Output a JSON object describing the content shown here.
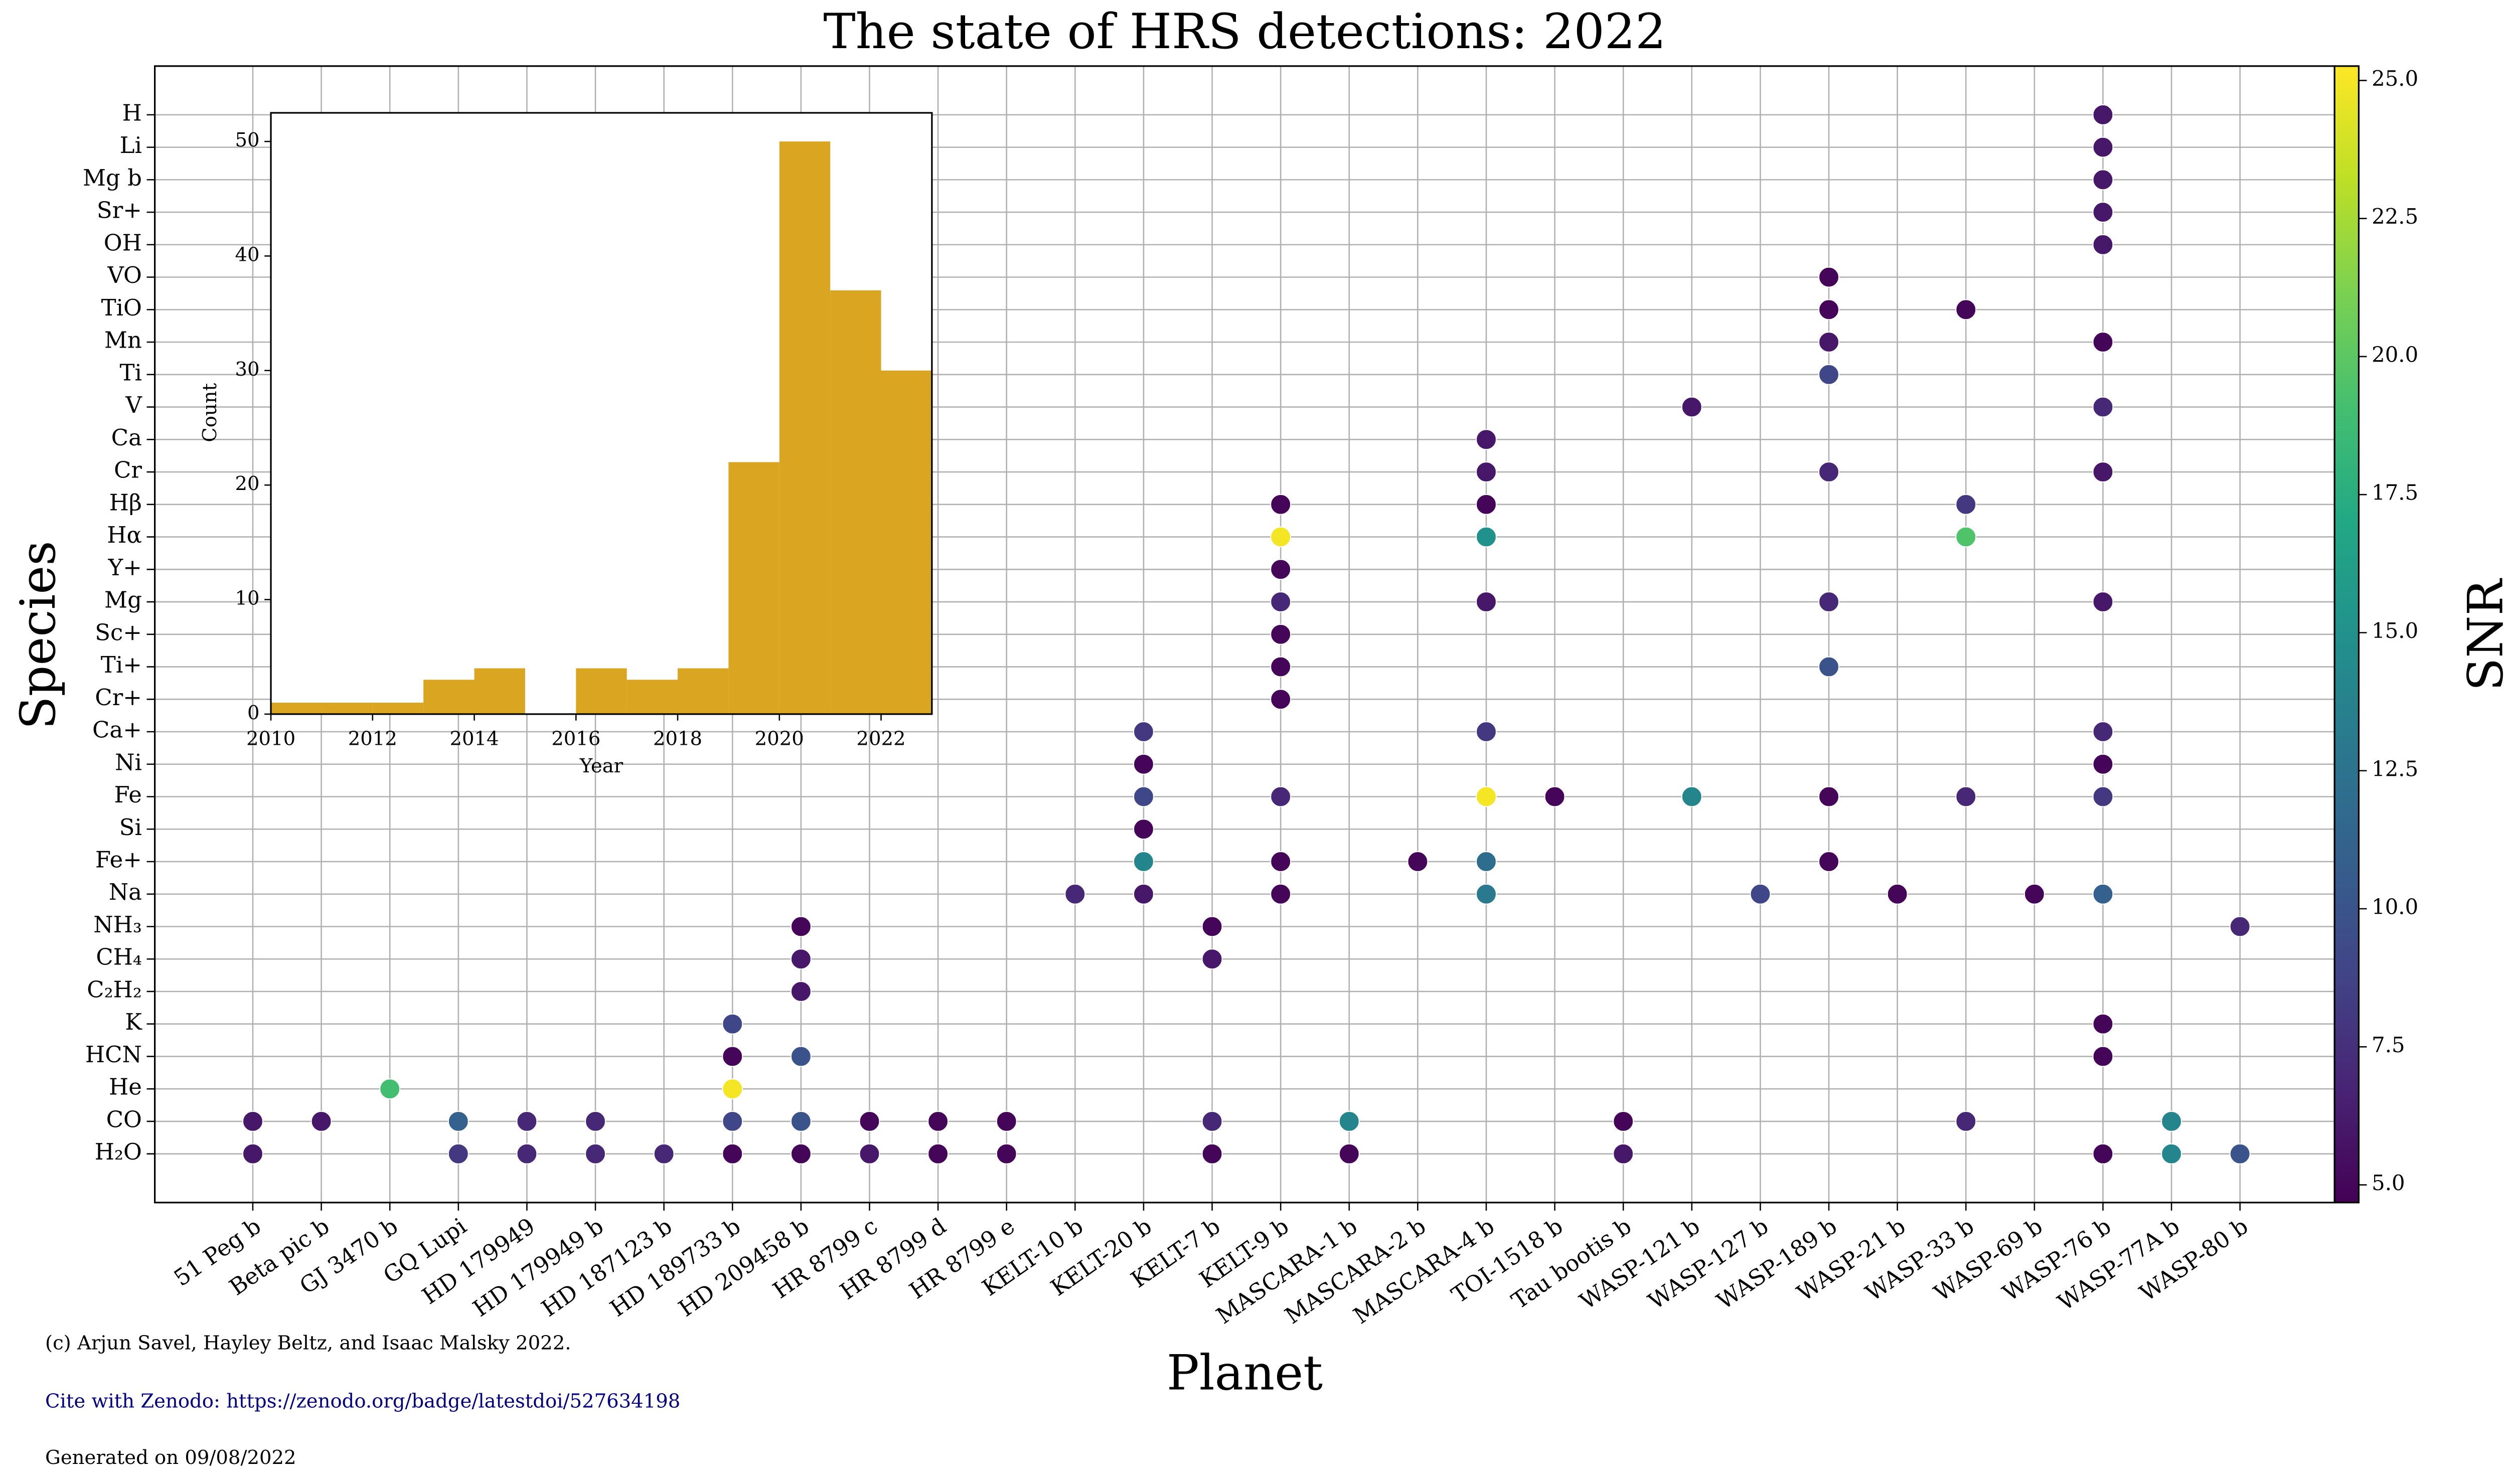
{
  "chart_data": [
    {
      "type": "scatter",
      "title": "The state of HRS detections: 2022",
      "x_label": "Planet",
      "y_label": "Species",
      "colorbar_label": "SNR",
      "categories": [
        "51 Peg b",
        "Beta pic b",
        "GJ 3470 b",
        "GQ Lupi",
        "HD 179949",
        "HD 179949 b",
        "HD 187123 b",
        "HD 189733 b",
        "HD 209458 b",
        "HR 8799 c",
        "HR 8799 d",
        "HR 8799 e",
        "KELT-10 b",
        "KELT-20 b",
        "KELT-7 b",
        "KELT-9 b",
        "MASCARA-1 b",
        "MASCARA-2 b",
        "MASCARA-4 b",
        "TOI-1518 b",
        "Tau bootis b",
        "WASP-121 b",
        "WASP-127 b",
        "WASP-189 b",
        "WASP-21 b",
        "WASP-33 b",
        "WASP-69 b",
        "WASP-76 b",
        "WASP-77A b",
        "WASP-80 b"
      ],
      "y_categories": [
        "H₂O",
        "CO",
        "He",
        "HCN",
        "K",
        "C₂H₂",
        "CH₄",
        "NH₃",
        "Na",
        "Fe+",
        "Si",
        "Fe",
        "Ni",
        "Ca+",
        "Cr+",
        "Ti+",
        "Sc+",
        "Mg",
        "Y+",
        "Hα",
        "Hβ",
        "Cr",
        "Ca",
        "V",
        "Ti",
        "Mn",
        "TiO",
        "VO",
        "OH",
        "Sr+",
        "Mg b",
        "Li",
        "H"
      ],
      "points": [
        {
          "planet": "51 Peg b",
          "species": "CO",
          "snr": 6
        },
        {
          "planet": "51 Peg b",
          "species": "H₂O",
          "snr": 6
        },
        {
          "planet": "Beta pic b",
          "species": "CO",
          "snr": 6
        },
        {
          "planet": "GJ 3470 b",
          "species": "He",
          "snr": 19
        },
        {
          "planet": "GQ Lupi",
          "species": "CO",
          "snr": 11
        },
        {
          "planet": "GQ Lupi",
          "species": "H₂O",
          "snr": 8
        },
        {
          "planet": "HD 179949",
          "species": "CO",
          "snr": 7
        },
        {
          "planet": "HD 179949",
          "species": "H₂O",
          "snr": 7
        },
        {
          "planet": "HD 179949 b",
          "species": "CO",
          "snr": 7
        },
        {
          "planet": "HD 179949 b",
          "species": "H₂O",
          "snr": 7
        },
        {
          "planet": "HD 187123 b",
          "species": "H₂O",
          "snr": 7
        },
        {
          "planet": "HD 189733 b",
          "species": "K",
          "snr": 9
        },
        {
          "planet": "HD 189733 b",
          "species": "HCN",
          "snr": 5
        },
        {
          "planet": "HD 189733 b",
          "species": "He",
          "snr": 25
        },
        {
          "planet": "HD 189733 b",
          "species": "CO",
          "snr": 9
        },
        {
          "planet": "HD 189733 b",
          "species": "H₂O",
          "snr": 5
        },
        {
          "planet": "HD 209458 b",
          "species": "NH₃",
          "snr": 5
        },
        {
          "planet": "HD 209458 b",
          "species": "CH₄",
          "snr": 6
        },
        {
          "planet": "HD 209458 b",
          "species": "C₂H₂",
          "snr": 6
        },
        {
          "planet": "HD 209458 b",
          "species": "HCN",
          "snr": 10
        },
        {
          "planet": "HD 209458 b",
          "species": "CO",
          "snr": 10
        },
        {
          "planet": "HD 209458 b",
          "species": "H₂O",
          "snr": 5
        },
        {
          "planet": "HR 8799 c",
          "species": "CO",
          "snr": 5
        },
        {
          "planet": "HR 8799 c",
          "species": "H₂O",
          "snr": 6
        },
        {
          "planet": "HR 8799 d",
          "species": "CO",
          "snr": 5
        },
        {
          "planet": "HR 8799 d",
          "species": "H₂O",
          "snr": 5
        },
        {
          "planet": "HR 8799 e",
          "species": "CO",
          "snr": 5
        },
        {
          "planet": "HR 8799 e",
          "species": "H₂O",
          "snr": 5
        },
        {
          "planet": "KELT-10 b",
          "species": "Na",
          "snr": 7
        },
        {
          "planet": "KELT-20 b",
          "species": "Ca+",
          "snr": 8
        },
        {
          "planet": "KELT-20 b",
          "species": "Ni",
          "snr": 5
        },
        {
          "planet": "KELT-20 b",
          "species": "Fe",
          "snr": 9
        },
        {
          "planet": "KELT-20 b",
          "species": "Si",
          "snr": 5
        },
        {
          "planet": "KELT-20 b",
          "species": "Fe+",
          "snr": 14
        },
        {
          "planet": "KELT-20 b",
          "species": "Na",
          "snr": 6
        },
        {
          "planet": "KELT-7 b",
          "species": "NH₃",
          "snr": 5
        },
        {
          "planet": "KELT-7 b",
          "species": "CH₄",
          "snr": 6
        },
        {
          "planet": "KELT-7 b",
          "species": "CO",
          "snr": 7
        },
        {
          "planet": "KELT-7 b",
          "species": "H₂O",
          "snr": 5
        },
        {
          "planet": "KELT-9 b",
          "species": "Hβ",
          "snr": 5
        },
        {
          "planet": "KELT-9 b",
          "species": "Hα",
          "snr": 25
        },
        {
          "planet": "KELT-9 b",
          "species": "Y+",
          "snr": 5
        },
        {
          "planet": "KELT-9 b",
          "species": "Mg",
          "snr": 7
        },
        {
          "planet": "KELT-9 b",
          "species": "Sc+",
          "snr": 5
        },
        {
          "planet": "KELT-9 b",
          "species": "Ti+",
          "snr": 5
        },
        {
          "planet": "KELT-9 b",
          "species": "Cr+",
          "snr": 5
        },
        {
          "planet": "KELT-9 b",
          "species": "Fe",
          "snr": 7
        },
        {
          "planet": "KELT-9 b",
          "species": "Fe+",
          "snr": 5
        },
        {
          "planet": "KELT-9 b",
          "species": "Na",
          "snr": 5
        },
        {
          "planet": "MASCARA-1 b",
          "species": "CO",
          "snr": 14
        },
        {
          "planet": "MASCARA-1 b",
          "species": "H₂O",
          "snr": 5
        },
        {
          "planet": "MASCARA-2 b",
          "species": "Fe+",
          "snr": 5
        },
        {
          "planet": "MASCARA-4 b",
          "species": "Ca",
          "snr": 6
        },
        {
          "planet": "MASCARA-4 b",
          "species": "Cr",
          "snr": 6
        },
        {
          "planet": "MASCARA-4 b",
          "species": "Hβ",
          "snr": 5
        },
        {
          "planet": "MASCARA-4 b",
          "species": "Hα",
          "snr": 15
        },
        {
          "planet": "MASCARA-4 b",
          "species": "Mg",
          "snr": 6
        },
        {
          "planet": "MASCARA-4 b",
          "species": "Ca+",
          "snr": 8
        },
        {
          "planet": "MASCARA-4 b",
          "species": "Fe",
          "snr": 25
        },
        {
          "planet": "MASCARA-4 b",
          "species": "Fe+",
          "snr": 12
        },
        {
          "planet": "MASCARA-4 b",
          "species": "Na",
          "snr": 13
        },
        {
          "planet": "TOI-1518 b",
          "species": "Fe",
          "snr": 5
        },
        {
          "planet": "Tau bootis b",
          "species": "CO",
          "snr": 5
        },
        {
          "planet": "Tau bootis b",
          "species": "H₂O",
          "snr": 6
        },
        {
          "planet": "WASP-121 b",
          "species": "V",
          "snr": 6
        },
        {
          "planet": "WASP-121 b",
          "species": "Fe",
          "snr": 14
        },
        {
          "planet": "WASP-127 b",
          "species": "Na",
          "snr": 9
        },
        {
          "planet": "WASP-189 b",
          "species": "VO",
          "snr": 5
        },
        {
          "planet": "WASP-189 b",
          "species": "TiO",
          "snr": 5
        },
        {
          "planet": "WASP-189 b",
          "species": "Mn",
          "snr": 6
        },
        {
          "planet": "WASP-189 b",
          "species": "Ti",
          "snr": 9
        },
        {
          "planet": "WASP-189 b",
          "species": "Cr",
          "snr": 7
        },
        {
          "planet": "WASP-189 b",
          "species": "Mg",
          "snr": 7
        },
        {
          "planet": "WASP-189 b",
          "species": "Ti+",
          "snr": 10
        },
        {
          "planet": "WASP-189 b",
          "species": "Fe",
          "snr": 5
        },
        {
          "planet": "WASP-189 b",
          "species": "Fe+",
          "snr": 5
        },
        {
          "planet": "WASP-21 b",
          "species": "Na",
          "snr": 5
        },
        {
          "planet": "WASP-33 b",
          "species": "TiO",
          "snr": 5
        },
        {
          "planet": "WASP-33 b",
          "species": "Hβ",
          "snr": 8
        },
        {
          "planet": "WASP-33 b",
          "species": "Hα",
          "snr": 19.5
        },
        {
          "planet": "WASP-33 b",
          "species": "Fe",
          "snr": 7
        },
        {
          "planet": "WASP-33 b",
          "species": "CO",
          "snr": 7
        },
        {
          "planet": "WASP-69 b",
          "species": "Na",
          "snr": 5
        },
        {
          "planet": "WASP-76 b",
          "species": "H",
          "snr": 6
        },
        {
          "planet": "WASP-76 b",
          "species": "Li",
          "snr": 6
        },
        {
          "planet": "WASP-76 b",
          "species": "Mg b",
          "snr": 6
        },
        {
          "planet": "WASP-76 b",
          "species": "Sr+",
          "snr": 6
        },
        {
          "planet": "WASP-76 b",
          "species": "OH",
          "snr": 6
        },
        {
          "planet": "WASP-76 b",
          "species": "Mn",
          "snr": 5
        },
        {
          "planet": "WASP-76 b",
          "species": "V",
          "snr": 7
        },
        {
          "planet": "WASP-76 b",
          "species": "Cr",
          "snr": 6
        },
        {
          "planet": "WASP-76 b",
          "species": "Mg",
          "snr": 6
        },
        {
          "planet": "WASP-76 b",
          "species": "Ca+",
          "snr": 7
        },
        {
          "planet": "WASP-76 b",
          "species": "Ni",
          "snr": 5
        },
        {
          "planet": "WASP-76 b",
          "species": "Fe",
          "snr": 8
        },
        {
          "planet": "WASP-76 b",
          "species": "Na",
          "snr": 11
        },
        {
          "planet": "WASP-76 b",
          "species": "K",
          "snr": 5
        },
        {
          "planet": "WASP-76 b",
          "species": "HCN",
          "snr": 5
        },
        {
          "planet": "WASP-76 b",
          "species": "H₂O",
          "snr": 5
        },
        {
          "planet": "WASP-77A b",
          "species": "CO",
          "snr": 14
        },
        {
          "planet": "WASP-77A b",
          "species": "H₂O",
          "snr": 14
        },
        {
          "planet": "WASP-80 b",
          "species": "NH₃",
          "snr": 7
        },
        {
          "planet": "WASP-80 b",
          "species": "H₂O",
          "snr": 10
        }
      ],
      "colormap": "viridis",
      "clim": [
        4.68,
        25.26
      ],
      "cticks": [
        {
          "value": 5,
          "label": "5.0"
        },
        {
          "value": 7.5,
          "label": "7.5"
        },
        {
          "value": 10,
          "label": "10.0"
        },
        {
          "value": 12.5,
          "label": "12.5"
        },
        {
          "value": 15,
          "label": "15.0"
        },
        {
          "value": 17.5,
          "label": "17.5"
        },
        {
          "value": 20,
          "label": "20.0"
        },
        {
          "value": 22.5,
          "label": "22.5"
        },
        {
          "value": 25,
          "label": "25.0"
        }
      ],
      "grid": true
    },
    {
      "type": "histogram",
      "x_label": "Year",
      "y_label": "Count",
      "bins": [
        2010,
        2011,
        2012,
        2013,
        2014,
        2015,
        2016,
        2017,
        2018,
        2019,
        2020,
        2021,
        2022,
        2023
      ],
      "values": [
        1,
        1,
        1,
        3,
        4,
        0,
        4,
        3,
        4,
        22,
        50,
        37,
        30
      ],
      "color": "#daa520",
      "xlim": [
        2010,
        2023
      ],
      "ylim": [
        0,
        52.5
      ],
      "xticks": [
        2010,
        2012,
        2014,
        2016,
        2018,
        2020,
        2022
      ],
      "yticks": [
        0,
        10,
        20,
        30,
        40,
        50
      ]
    }
  ],
  "footer": [
    "(c) Arjun Savel, Hayley Beltz, and Isaac Malsky 2022.",
    "Cite with Zenodo: https://zenodo.org/badge/latestdoi/527634198",
    "Generated on 09/08/2022"
  ]
}
